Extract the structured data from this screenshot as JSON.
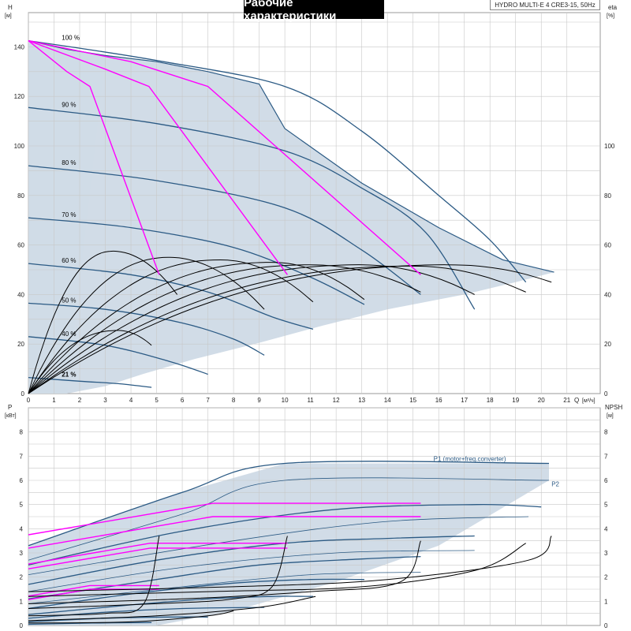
{
  "title": "Рабочие характеристики",
  "model": "HYDRO MULTI-E 4 CRE3-15, 50Hz",
  "colors": {
    "envelope": "#cfdae6",
    "envelope_light": "#e4eef8",
    "curve": "#2b5a84",
    "efficiency": "#ff00ff",
    "system": "#000000",
    "grid": "#c8c8c8"
  },
  "chart_data": [
    {
      "type": "line",
      "name": "head",
      "ylabel_top": "H",
      "ylabel_unit": "[м]",
      "y2label_top": "eta",
      "y2label_unit": "[%]",
      "xlabel": "Q",
      "xlabel_unit": "[м³/ч]",
      "xlim": [
        0,
        22.3
      ],
      "ylim": [
        0,
        150
      ],
      "y2lim": [
        0,
        150
      ],
      "xticks": [
        0,
        1,
        2,
        3,
        4,
        5,
        6,
        7,
        8,
        9,
        10,
        11,
        12,
        13,
        14,
        15,
        16,
        17,
        18,
        19,
        20,
        21
      ],
      "yticks": [
        0,
        20,
        40,
        60,
        80,
        100,
        120,
        140
      ],
      "y2ticks": [
        0,
        20,
        40,
        60,
        80,
        100
      ],
      "grid": true,
      "envelope": [
        [
          0,
          142.5
        ],
        [
          1.5,
          139
        ],
        [
          3,
          136.5
        ],
        [
          5,
          134
        ],
        [
          7,
          130
        ],
        [
          9,
          125
        ],
        [
          10,
          107
        ],
        [
          13,
          85
        ],
        [
          16,
          67
        ],
        [
          18.5,
          54
        ],
        [
          20.5,
          49
        ],
        [
          19,
          45
        ],
        [
          17,
          40
        ],
        [
          14,
          34
        ],
        [
          11.5,
          27.5
        ],
        [
          9,
          20.5
        ],
        [
          6.5,
          14
        ],
        [
          4.5,
          8
        ],
        [
          3,
          3
        ],
        [
          1.5,
          0
        ],
        [
          0,
          0
        ]
      ],
      "pump_curves": [
        {
          "speed_label": "100 %",
          "points": [
            [
              0,
              142.5
            ],
            [
              5,
              134.5
            ],
            [
              10,
              124
            ],
            [
              13,
              106
            ],
            [
              16,
              80
            ],
            [
              18,
              62
            ],
            [
              19.4,
              45
            ]
          ]
        },
        {
          "speed_label": "90 %",
          "points": [
            [
              0,
              115.5
            ],
            [
              5,
              109
            ],
            [
              10,
              98
            ],
            [
              13,
              83
            ],
            [
              15.5,
              65
            ],
            [
              17.4,
              34
            ]
          ]
        },
        {
          "speed_label": "80 %",
          "points": [
            [
              0,
              92
            ],
            [
              5,
              86
            ],
            [
              10,
              75
            ],
            [
              13,
              58
            ],
            [
              15.3,
              40
            ]
          ]
        },
        {
          "speed_label": "70 %",
          "points": [
            [
              0,
              71
            ],
            [
              4,
              67
            ],
            [
              8,
              59
            ],
            [
              11,
              47
            ],
            [
              13.1,
              36
            ]
          ]
        },
        {
          "speed_label": "60 %",
          "points": [
            [
              0,
              52.5
            ],
            [
              4,
              48
            ],
            [
              7,
              41
            ],
            [
              9.5,
              31
            ],
            [
              11.1,
              26
            ]
          ]
        },
        {
          "speed_label": "50 %",
          "points": [
            [
              0,
              36.5
            ],
            [
              3,
              34
            ],
            [
              6,
              28.5
            ],
            [
              8,
              22
            ],
            [
              9.2,
              15.5
            ]
          ]
        },
        {
          "speed_label": "40 %",
          "points": [
            [
              0,
              23
            ],
            [
              3,
              19.5
            ],
            [
              5.5,
              13
            ],
            [
              7,
              7.8
            ]
          ]
        },
        {
          "speed_label": "21 %",
          "points": [
            [
              0,
              6.5
            ],
            [
              2,
              5
            ],
            [
              3.5,
              4
            ],
            [
              4.8,
              2.5
            ]
          ]
        }
      ],
      "efficiency_lines": [
        [
          [
            0,
            142.5
          ],
          [
            1.5,
            130
          ],
          [
            2.4,
            124
          ],
          [
            5.1,
            48
          ]
        ],
        [
          [
            0,
            142.5
          ],
          [
            3,
            131
          ],
          [
            4.7,
            124
          ],
          [
            10.1,
            48
          ]
        ],
        [
          [
            0,
            142.5
          ],
          [
            4,
            134
          ],
          [
            7,
            124
          ],
          [
            15.3,
            48
          ]
        ]
      ],
      "efficiency_curves": [
        {
          "peak_q": 3.5,
          "peak_eta": 25.5,
          "end_q": 4.8,
          "end_eta": 19.5
        },
        {
          "peak_q": 3.3,
          "peak_eta": 57.5,
          "end_q": 5.8,
          "end_eta": 40
        },
        {
          "peak_q": 5.5,
          "peak_eta": 55,
          "end_q": 9.2,
          "end_eta": 34
        },
        {
          "peak_q": 7.5,
          "peak_eta": 54,
          "end_q": 11.1,
          "end_eta": 37
        },
        {
          "peak_q": 9.5,
          "peak_eta": 53,
          "end_q": 13.1,
          "end_eta": 38
        },
        {
          "peak_q": 11,
          "peak_eta": 52,
          "end_q": 15.3,
          "end_eta": 41
        },
        {
          "peak_q": 13,
          "peak_eta": 52,
          "end_q": 17.4,
          "end_eta": 40
        },
        {
          "peak_q": 15,
          "peak_eta": 51.5,
          "end_q": 19.4,
          "end_eta": 41
        },
        {
          "peak_q": 16.5,
          "peak_eta": 52,
          "end_q": 20.4,
          "end_eta": 45
        }
      ]
    },
    {
      "type": "line",
      "name": "power",
      "ylabel_top": "P",
      "ylabel_unit": "[кВт]",
      "y2label_top": "NPSH",
      "y2label_unit": "[м]",
      "xlim": [
        0,
        22.3
      ],
      "ylim": [
        0,
        9
      ],
      "y2lim": [
        0,
        9
      ],
      "yticks": [
        0,
        1,
        2,
        3,
        4,
        5,
        6,
        7,
        8
      ],
      "y2ticks": [
        0,
        1,
        2,
        3,
        4,
        5,
        6,
        7,
        8
      ],
      "grid": true,
      "series_labels": [
        "P1 (motor+freq.converter)",
        "P2"
      ],
      "envelope": [
        [
          0,
          3.3
        ],
        [
          6,
          5.5
        ],
        [
          10,
          6.7
        ],
        [
          20.3,
          6.7
        ],
        [
          20.3,
          6
        ],
        [
          16,
          3.3
        ],
        [
          12,
          1.8
        ],
        [
          8,
          0.6
        ],
        [
          5,
          0
        ],
        [
          0,
          0
        ]
      ],
      "p1_curves": [
        [
          [
            0,
            3.3
          ],
          [
            6,
            5.5
          ],
          [
            10,
            6.7
          ],
          [
            20.3,
            6.7
          ]
        ],
        [
          [
            0,
            2.5
          ],
          [
            6,
            3.9
          ],
          [
            12,
            4.8
          ],
          [
            17.5,
            5
          ],
          [
            20,
            4.9
          ]
        ],
        [
          [
            0,
            1.7
          ],
          [
            5,
            2.7
          ],
          [
            10,
            3.4
          ],
          [
            14,
            3.6
          ],
          [
            17.4,
            3.7
          ]
        ],
        [
          [
            0,
            1.1
          ],
          [
            5,
            1.9
          ],
          [
            9,
            2.5
          ],
          [
            13,
            2.75
          ],
          [
            15.3,
            2.85
          ]
        ],
        [
          [
            0,
            0.7
          ],
          [
            4,
            1.3
          ],
          [
            8,
            1.75
          ],
          [
            11,
            1.9
          ],
          [
            13.1,
            1.9
          ]
        ],
        [
          [
            0,
            0.45
          ],
          [
            4,
            0.85
          ],
          [
            7,
            1.1
          ],
          [
            9.5,
            1.2
          ],
          [
            11.1,
            1.2
          ]
        ],
        [
          [
            0,
            0.3
          ],
          [
            3,
            0.55
          ],
          [
            6,
            0.7
          ],
          [
            9.2,
            0.75
          ]
        ],
        [
          [
            0,
            0.15
          ],
          [
            3,
            0.3
          ],
          [
            5.5,
            0.35
          ],
          [
            7,
            0.35
          ]
        ],
        [
          [
            0,
            0.05
          ],
          [
            2.5,
            0.1
          ],
          [
            4.8,
            0.12
          ]
        ]
      ],
      "p2_curves": [
        [
          [
            0,
            2.7
          ],
          [
            6,
            4.6
          ],
          [
            10,
            6
          ],
          [
            20.3,
            6
          ]
        ],
        [
          [
            0,
            2.1
          ],
          [
            8,
            3.5
          ],
          [
            14,
            4.3
          ],
          [
            19.5,
            4.5
          ]
        ],
        [
          [
            0,
            1.4
          ],
          [
            6,
            2.4
          ],
          [
            12,
            3
          ],
          [
            17.4,
            3.1
          ]
        ],
        [
          [
            0,
            0.9
          ],
          [
            6,
            1.6
          ],
          [
            11,
            2.1
          ],
          [
            15.3,
            2.2
          ]
        ]
      ],
      "efficiency_levels": [
        {
          "q_end": 15.3,
          "p": 5.05
        },
        {
          "q_end": 15.3,
          "p": 4.5
        },
        {
          "q_end": 10.1,
          "p": 3.4
        },
        {
          "q_end": 10.1,
          "p": 3.2
        },
        {
          "q_end": 5.1,
          "p": 1.65
        },
        {
          "q_end": 5.1,
          "p": 1.5
        }
      ],
      "npsh_curves": [
        [
          [
            0,
            1.4
          ],
          [
            8,
            1.6
          ],
          [
            14,
            1.9
          ],
          [
            19.5,
            2.7
          ],
          [
            20.4,
            3.7
          ]
        ],
        [
          [
            0,
            1.2
          ],
          [
            7,
            1.4
          ],
          [
            13,
            1.6
          ],
          [
            17.5,
            2.3
          ],
          [
            19.4,
            3.4
          ]
        ],
        [
          [
            0,
            0.9
          ],
          [
            6,
            1.1
          ],
          [
            11,
            1.4
          ],
          [
            14.5,
            1.8
          ],
          [
            15.3,
            3.5
          ]
        ],
        [
          [
            0,
            0.7
          ],
          [
            5,
            0.9
          ],
          [
            8,
            1.1
          ],
          [
            9.5,
            1.6
          ],
          [
            10.1,
            3.7
          ]
        ],
        [
          [
            0,
            0.4
          ],
          [
            3,
            0.5
          ],
          [
            4.5,
            0.9
          ],
          [
            5.1,
            3.7
          ]
        ],
        [
          [
            0,
            0.2
          ],
          [
            5,
            0.4
          ],
          [
            9,
            0.75
          ],
          [
            11.2,
            1.2
          ]
        ],
        [
          [
            0,
            0.1
          ],
          [
            4,
            0.15
          ],
          [
            7,
            0.4
          ],
          [
            8,
            0.6
          ]
        ]
      ]
    }
  ]
}
